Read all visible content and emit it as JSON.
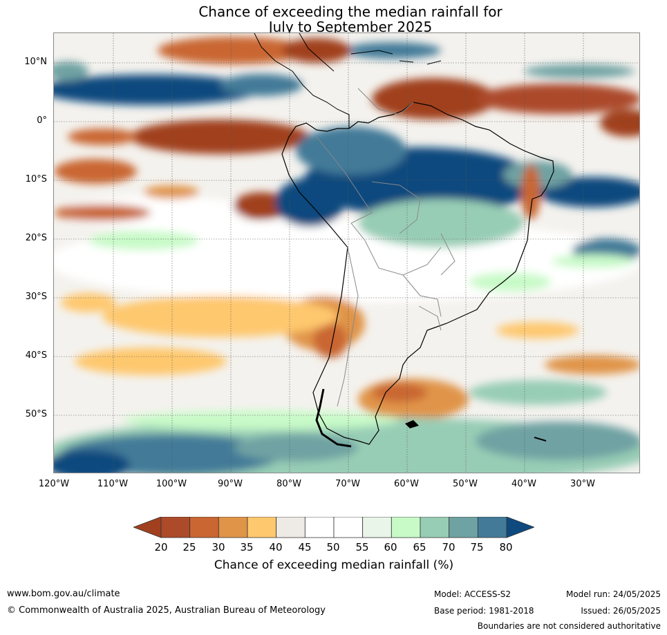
{
  "title": {
    "line1": "Chance of exceeding the median rainfall for",
    "line2": "July to September 2025"
  },
  "map": {
    "lat_labels": [
      "10°N",
      "0°",
      "10°S",
      "20°S",
      "30°S",
      "40°S",
      "50°S"
    ],
    "lon_labels": [
      "120°W",
      "110°W",
      "100°W",
      "90°W",
      "80°W",
      "70°W",
      "60°W",
      "50°W",
      "40°W",
      "30°W"
    ]
  },
  "colorbar": {
    "ticks": [
      "20",
      "25",
      "30",
      "35",
      "40",
      "45",
      "50",
      "55",
      "60",
      "65",
      "70",
      "75",
      "80"
    ],
    "colors": [
      "#a0401f",
      "#ac4a2a",
      "#c96632",
      "#e09448",
      "#fec86e",
      "#eeebe6",
      "#ffffff",
      "#ffffff",
      "#e9f5e9",
      "#c8fac8",
      "#98cdb5",
      "#6fa2a3",
      "#437a98",
      "#0f4a7e"
    ],
    "label": "Chance of exceeding median rainfall (%)"
  },
  "footer": {
    "website": "www.bom.gov.au/climate",
    "copyright": "© Commonwealth of Australia 2025, Australian Bureau of Meteorology",
    "model": "Model: ACCESS-S2",
    "base_period": "Base period: 1981-2018",
    "model_run": "Model run: 24/05/2025",
    "issued": "Issued: 26/05/2025",
    "disclaimer": "Boundaries are not considered authoritative"
  }
}
